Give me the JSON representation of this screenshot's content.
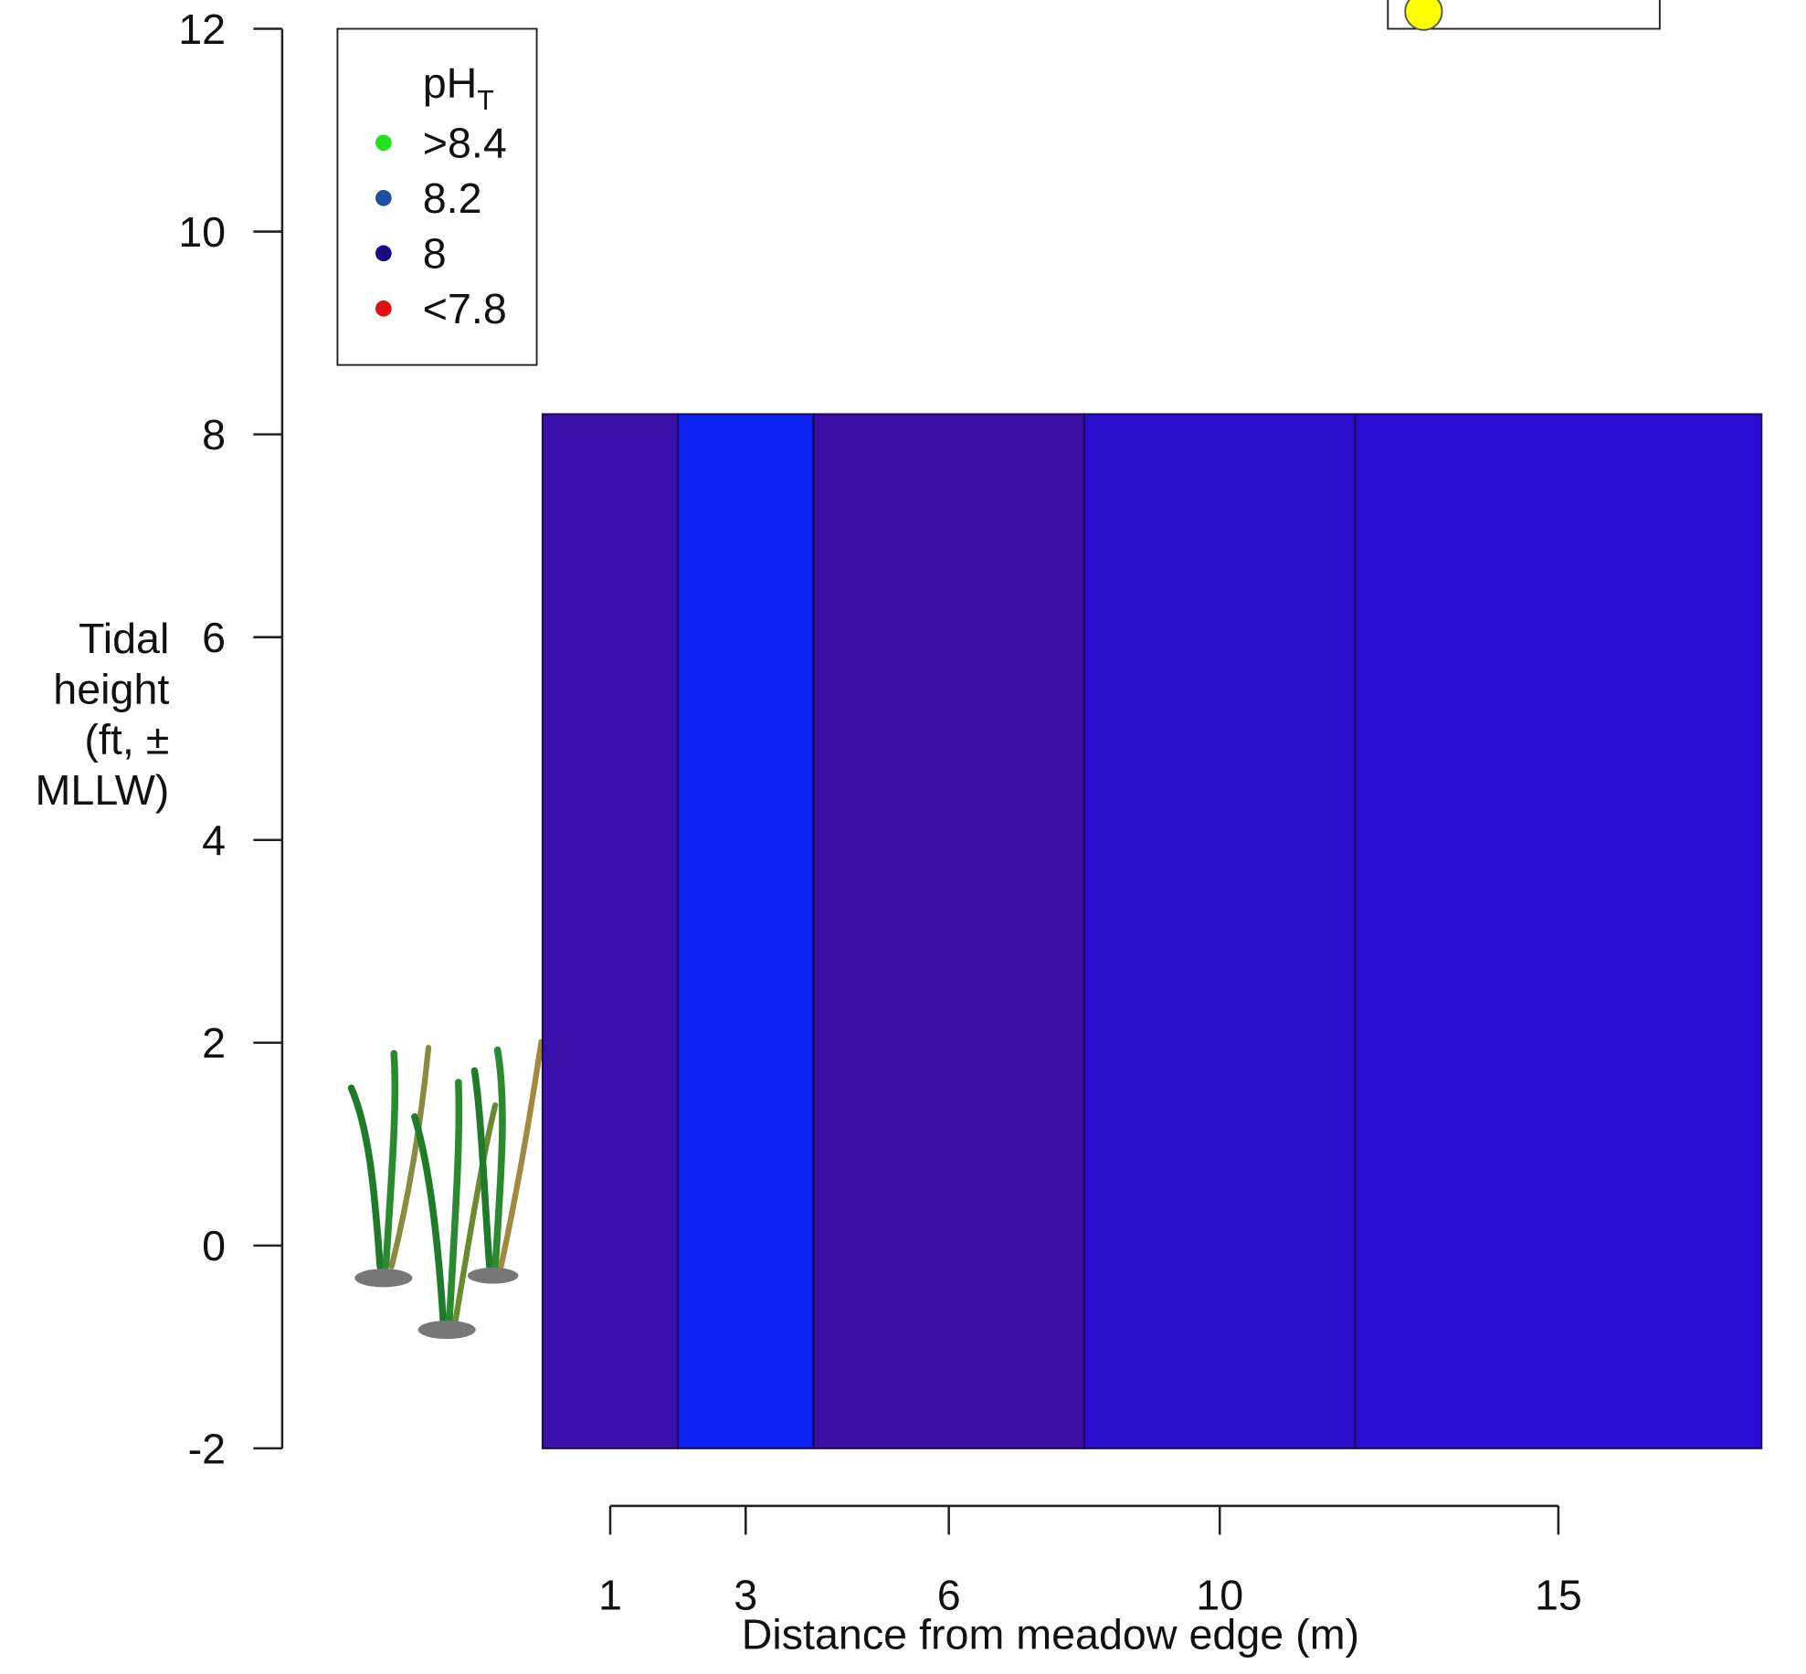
{
  "chart_data": {
    "type": "bands",
    "ylabel_lines": [
      "Tidal",
      "height",
      "(ft, ±",
      "MLLW)"
    ],
    "xlabel": "Distance from meadow edge (m)",
    "ylim": [
      -2,
      12
    ],
    "yticks": [
      -2,
      0,
      2,
      4,
      6,
      8,
      10,
      12
    ],
    "xlim": [
      -4,
      18.5
    ],
    "xticks": [
      1,
      3,
      6,
      10,
      15
    ],
    "y_range": [
      -2,
      8.2
    ],
    "bands": [
      {
        "x": [
          0,
          2
        ],
        "color": "#3a10aa"
      },
      {
        "x": [
          2,
          4
        ],
        "color": "#0c22f2"
      },
      {
        "x": [
          4,
          8
        ],
        "color": "#3a0ca2"
      },
      {
        "x": [
          8,
          12
        ],
        "color": "#2a0ccc"
      },
      {
        "x": [
          12,
          18
        ],
        "color": "#2a0cd2"
      }
    ],
    "legend": {
      "title": "pH",
      "title_sub": "T",
      "entries": [
        {
          "label": ">8.4",
          "color": "#22e022"
        },
        {
          "label": "8.2",
          "color": "#1f4fa0"
        },
        {
          "label": "8",
          "color": "#1a0a80"
        },
        {
          "label": "<7.8",
          "color": "#e01010"
        }
      ]
    }
  }
}
